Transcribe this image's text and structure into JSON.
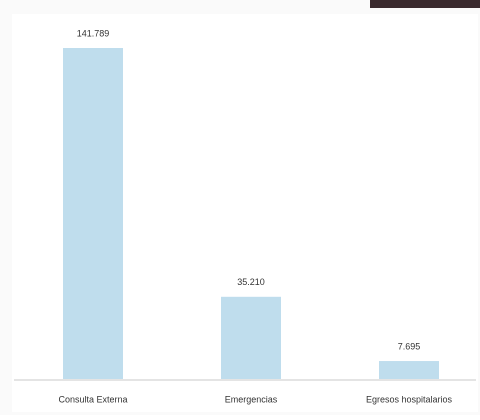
{
  "chart_data": {
    "type": "bar",
    "categories": [
      "Consulta Externa",
      "Emergencias",
      "Egresos hospitalarios"
    ],
    "values": [
      141789,
      35210,
      7695
    ],
    "value_labels": [
      "141.789",
      "35.210",
      "7.695"
    ],
    "color": "#bfdded"
  }
}
